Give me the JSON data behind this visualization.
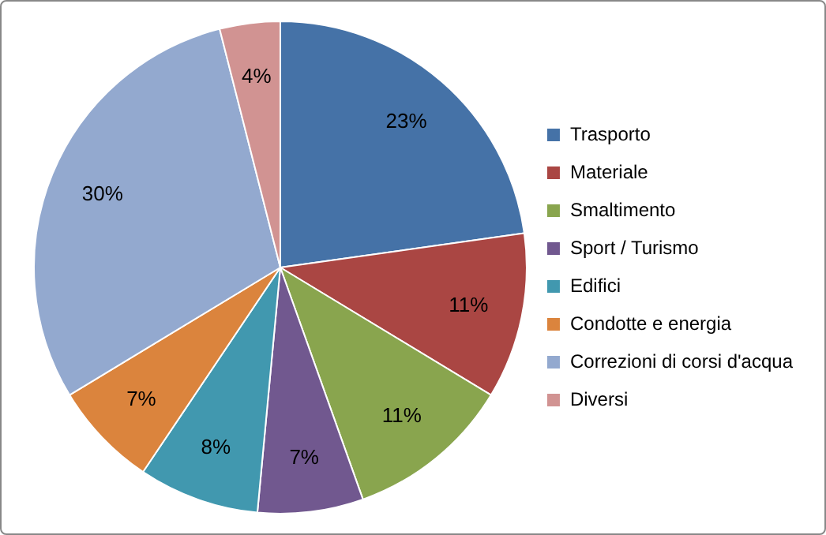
{
  "chart_data": {
    "type": "pie",
    "categories": [
      "Trasporto",
      "Materiale",
      "Smaltimento",
      "Sport / Turismo",
      "Edifici",
      "Condotte e energia",
      "Correzioni di corsi d'acqua",
      "Diversi"
    ],
    "values": [
      23,
      11,
      11,
      7,
      8,
      7,
      30,
      4
    ],
    "colors": [
      "#4572a7",
      "#aa4643",
      "#89a54e",
      "#71588f",
      "#4198af",
      "#db843d",
      "#93a9cf",
      "#d19392"
    ],
    "value_labels": [
      "23%",
      "11%",
      "11%",
      "7%",
      "8%",
      "7%",
      "30%",
      "4%"
    ],
    "legend": "right"
  }
}
